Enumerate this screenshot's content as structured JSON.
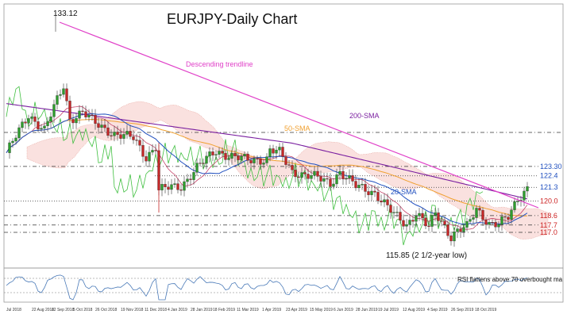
{
  "chart_data": {
    "type": "line",
    "title": "EURJPY-Daily Chart",
    "series": [
      {
        "name": "20-SMA",
        "color": "#1f4fbf"
      },
      {
        "name": "50-SMA",
        "color": "#f0a030"
      },
      {
        "name": "200-SMA",
        "color": "#7a1fa0"
      }
    ],
    "trendline_label": "Descending trendline",
    "trendline_color": "#e040c8",
    "annotations": {
      "high": "133.12",
      "low": "115.85 (2 1/2-year low)",
      "rsi": "RSI flattens above 70 overbought ma"
    },
    "levels": [
      {
        "label": "123.30",
        "value": 123.3,
        "color": "#1f4fbf",
        "style": "dashdot"
      },
      {
        "label": "122.4",
        "value": 122.4,
        "color": "#1f4fbf",
        "style": "dotted"
      },
      {
        "label": "121.3",
        "value": 121.3,
        "color": "#1f4fbf",
        "style": "dotted"
      },
      {
        "label": "120.0",
        "value": 120.0,
        "color": "#cc2222",
        "style": "dotted"
      },
      {
        "label": "118.6",
        "value": 118.6,
        "color": "#cc2222",
        "style": "dashdot"
      },
      {
        "label": "117.7",
        "value": 117.7,
        "color": "#cc2222",
        "style": "dashdot"
      },
      {
        "label": "117.0",
        "value": 117.0,
        "color": "#cc2222",
        "style": "dashdot"
      }
    ],
    "x_ticks": [
      "Jul 2018",
      "22 Aug 2018",
      "12 Sep 2018",
      "5 Oct 2018",
      "26 Oct 2018",
      "19 Nov 2018",
      "11 Dec 2018",
      "4 Jan 2019",
      "28 Jan 2019",
      "18 Feb 2019",
      "11 Mar 2019",
      "1 Apr 2019",
      "23 Apr 2019",
      "15 May 2019",
      "6 Jun 2019",
      "28 Jun 2019",
      "19 Jul 2019",
      "12 Aug 2019",
      "4 Sep 2019",
      "26 Sep 2019",
      "18 Oct 2019"
    ],
    "price_range": [
      114.5,
      134.5
    ],
    "grid": false,
    "legend": "none"
  }
}
